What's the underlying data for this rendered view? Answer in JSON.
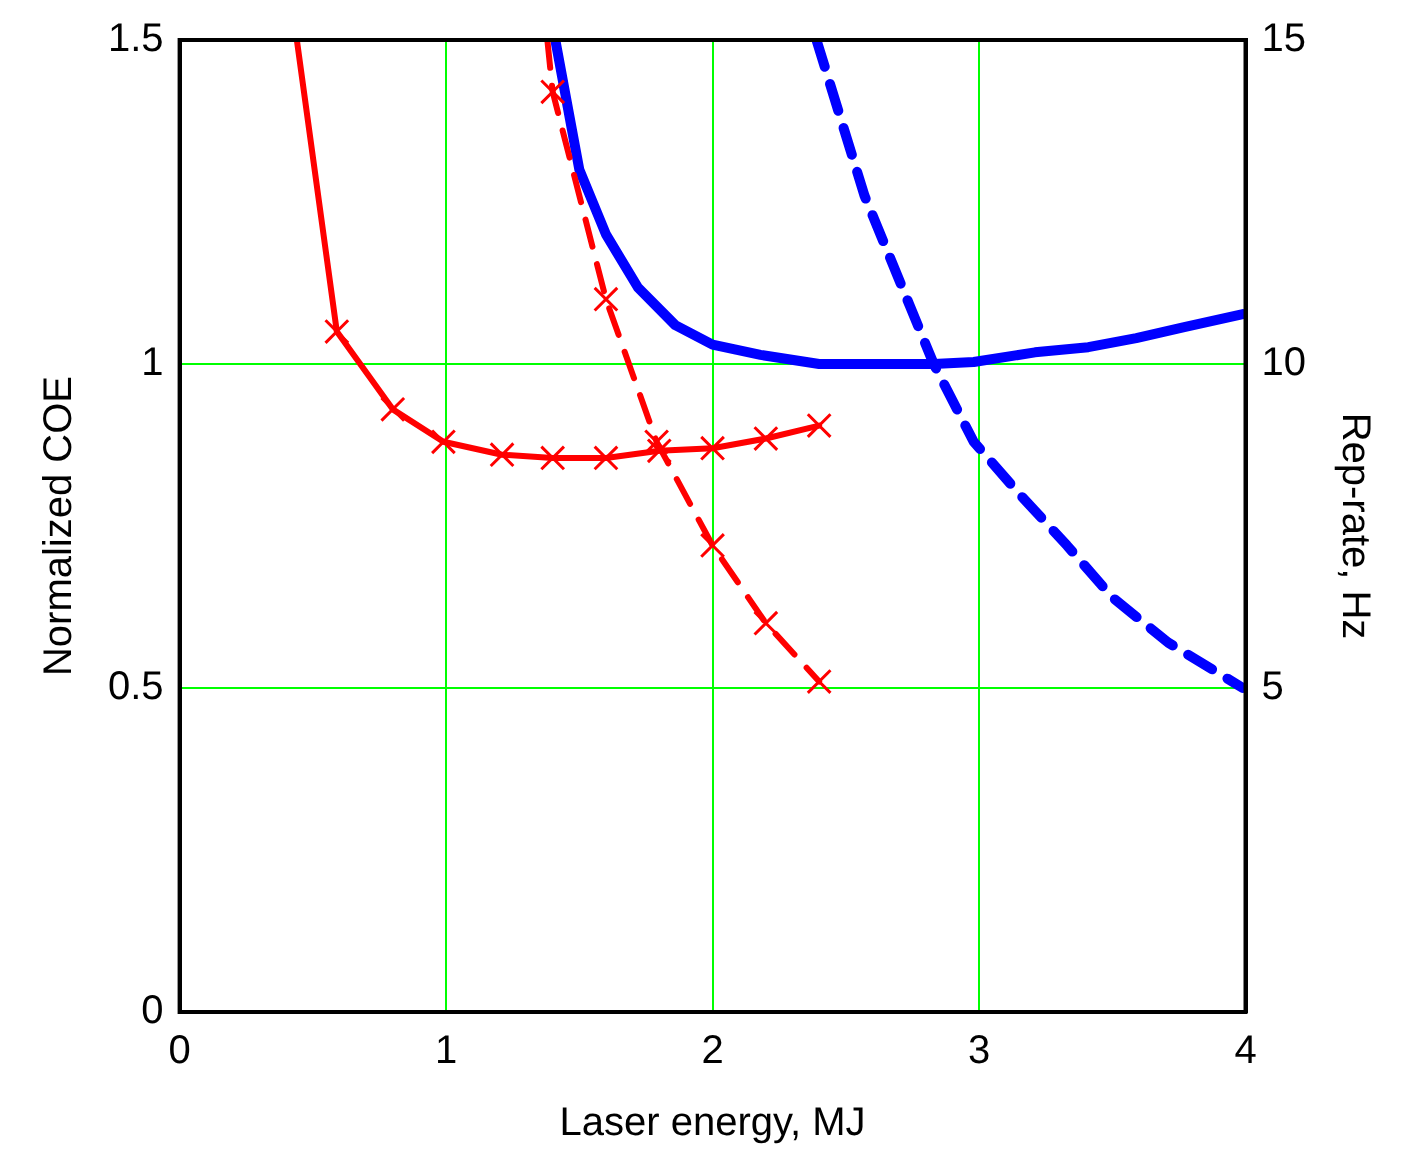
{
  "chart_data": {
    "type": "line",
    "xlabel": "Laser energy, MJ",
    "ylabel": "Normalized COE",
    "y2label": "Rep-rate, Hz",
    "xlim": [
      0,
      4
    ],
    "xticks": [
      0,
      1,
      2,
      3,
      4
    ],
    "ylim": [
      0,
      1.5
    ],
    "yticks": [
      0,
      0.5,
      1,
      1.5
    ],
    "y2lim": [
      0,
      15
    ],
    "y2ticks": [
      5,
      10,
      15
    ],
    "grid": true,
    "legend": false,
    "series": [
      {
        "color": "#ff0000",
        "marker": "cross",
        "line_style": "solid",
        "x": [
          0.44,
          0.59,
          0.8,
          0.99,
          1.21,
          1.4,
          1.6,
          1.8,
          2.0,
          2.2,
          2.4
        ],
        "values": [
          1.5,
          1.05,
          0.93,
          0.88,
          0.86,
          0.855,
          0.855,
          0.866,
          0.87,
          0.885,
          0.905
        ]
      },
      {
        "color": "#ff0000",
        "marker": "cross",
        "line_style": "dashed",
        "axis": "y2",
        "x": [
          1.38,
          1.4,
          1.6,
          1.79,
          2.0,
          2.2,
          2.4
        ],
        "values": [
          15,
          14.2,
          11.0,
          8.8,
          7.2,
          6.0,
          5.1
        ]
      },
      {
        "color": "#0000ff",
        "marker": "none",
        "line_style": "solid",
        "x": [
          1.41,
          1.5,
          1.6,
          1.72,
          1.86,
          2.0,
          2.18,
          2.4,
          2.83,
          2.98,
          3.21,
          3.41,
          3.59,
          3.77,
          3.99
        ],
        "values": [
          1.5,
          1.3,
          1.2,
          1.118,
          1.06,
          1.03,
          1.014,
          1.0,
          1.0,
          1.003,
          1.018,
          1.026,
          1.04,
          1.057,
          1.077
        ]
      },
      {
        "color": "#0000ff",
        "marker": "none",
        "line_style": "dashed",
        "axis": "y2",
        "x": [
          2.39,
          2.48,
          2.57,
          2.66,
          2.74,
          2.83,
          2.98,
          3.15,
          3.33,
          3.5,
          3.71,
          3.99
        ],
        "values": [
          15,
          13.8,
          12.6,
          11.7,
          10.9,
          10.0,
          8.8,
          8.0,
          7.2,
          6.4,
          5.7,
          5.0
        ]
      }
    ]
  }
}
